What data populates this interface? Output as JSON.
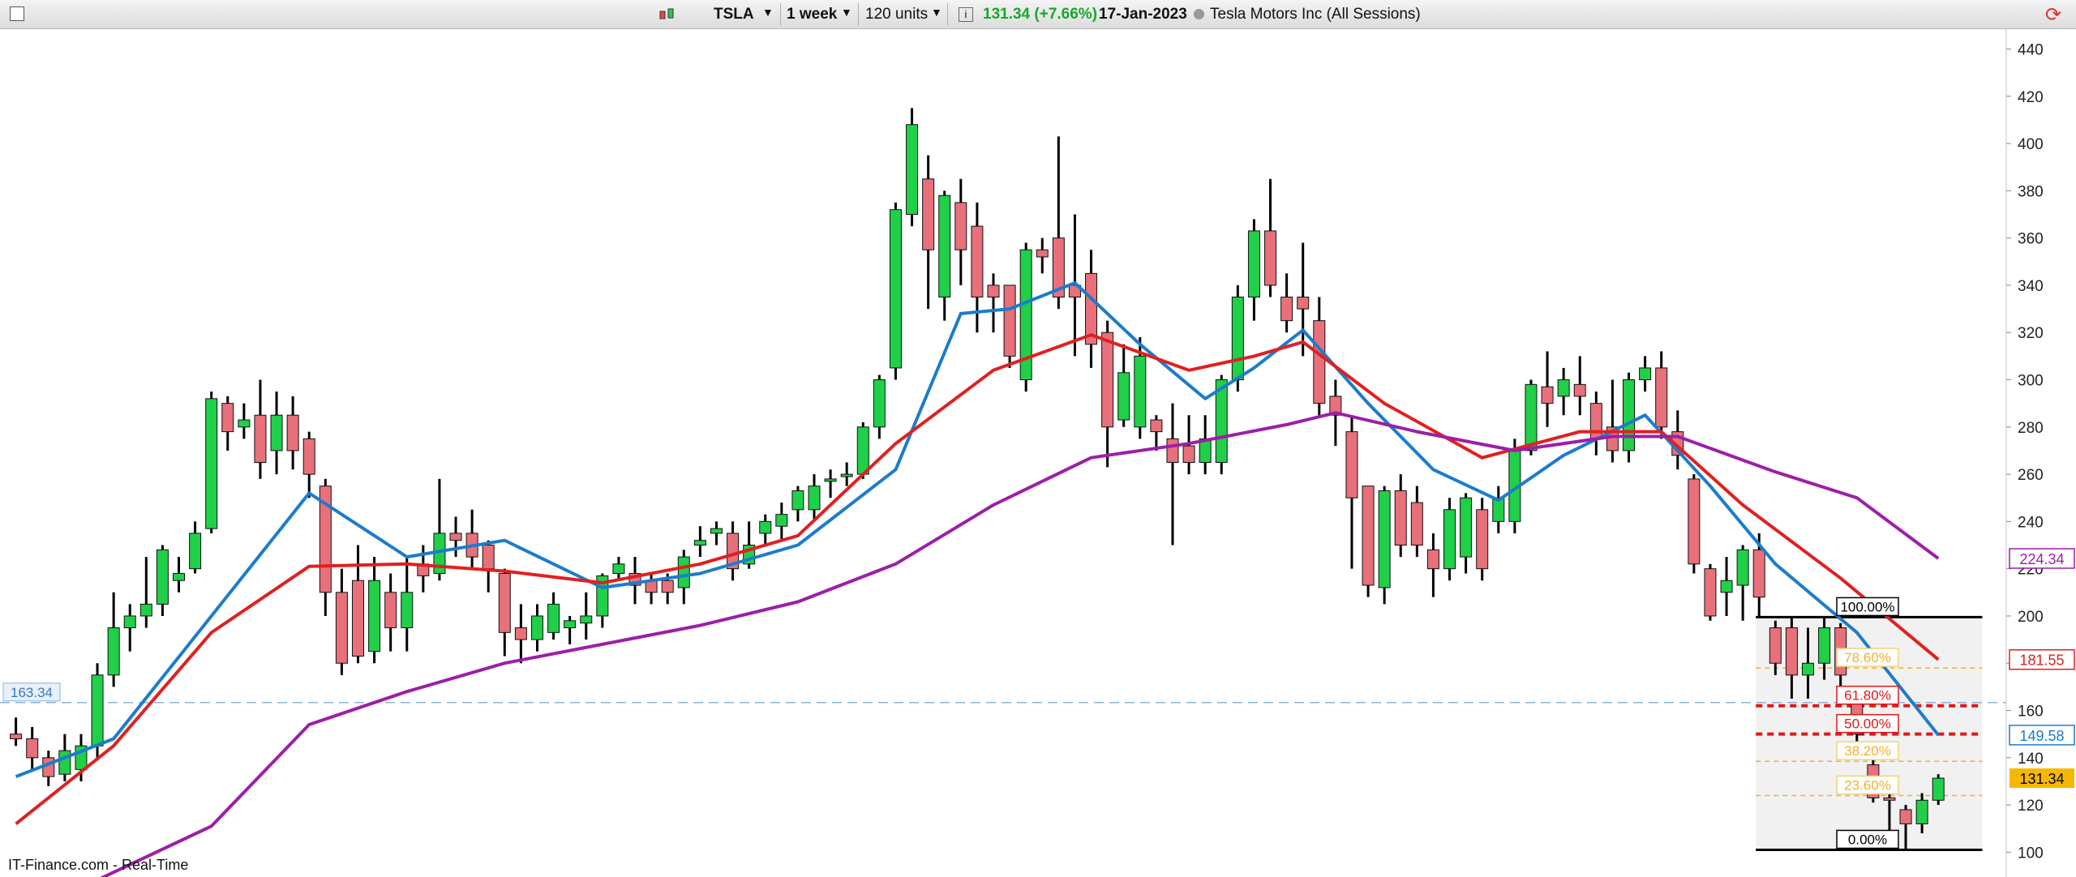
{
  "toolbar": {
    "symbol": "TSLA",
    "interval": "1 week",
    "units": "120 units",
    "quote": "131.34 (+7.66%)",
    "date": "17-Jan-2023",
    "instrument": "Tesla Motors Inc (All Sessions)"
  },
  "footer": "IT-Finance.com - Real-Time",
  "chart_data": {
    "type": "candlestick",
    "open": [
      150,
      148,
      140,
      133,
      135,
      145,
      175,
      195,
      200,
      205,
      215,
      220,
      237,
      290,
      280,
      285,
      270,
      285,
      275,
      255,
      210,
      215,
      185,
      210,
      195,
      222,
      218,
      235,
      235,
      230,
      218,
      195,
      190,
      193,
      195,
      197,
      200,
      218,
      218,
      215,
      215,
      212,
      230,
      235,
      235,
      222,
      235,
      238,
      245,
      245,
      257,
      259,
      260,
      280,
      305,
      370,
      385,
      335,
      375,
      365,
      340,
      340,
      300,
      355,
      360,
      340,
      345,
      320,
      283,
      280,
      283,
      275,
      272,
      265,
      265,
      300,
      335,
      363,
      335,
      335,
      325,
      293,
      278,
      255,
      212,
      253,
      248,
      228,
      220,
      225,
      245,
      240,
      240,
      270,
      297,
      293,
      298,
      290,
      280,
      270,
      300,
      305,
      278,
      258,
      220,
      210,
      213,
      228,
      195,
      195,
      175,
      180,
      195,
      163,
      137,
      123,
      118,
      112,
      122
    ],
    "high": [
      157,
      153,
      143,
      150,
      150,
      180,
      210,
      205,
      225,
      230,
      225,
      240,
      295,
      293,
      290,
      300,
      295,
      293,
      278,
      258,
      220,
      230,
      225,
      218,
      225,
      230,
      258,
      242,
      245,
      232,
      220,
      205,
      205,
      210,
      200,
      210,
      218,
      225,
      225,
      218,
      218,
      228,
      238,
      240,
      240,
      240,
      243,
      248,
      255,
      260,
      262,
      265,
      282,
      302,
      375,
      415,
      395,
      380,
      385,
      375,
      345,
      340,
      358,
      360,
      403,
      370,
      355,
      325,
      315,
      318,
      285,
      290,
      285,
      285,
      302,
      340,
      368,
      385,
      345,
      358,
      335,
      300,
      285,
      255,
      255,
      260,
      255,
      235,
      250,
      252,
      250,
      255,
      275,
      300,
      312,
      305,
      310,
      295,
      300,
      303,
      310,
      312,
      287,
      260,
      222,
      225,
      230,
      235,
      198,
      200,
      195,
      200,
      197,
      165,
      140,
      125,
      120,
      125,
      133
    ],
    "low": [
      145,
      135,
      128,
      130,
      130,
      140,
      170,
      185,
      195,
      200,
      210,
      218,
      235,
      270,
      275,
      258,
      260,
      262,
      250,
      200,
      175,
      180,
      180,
      185,
      185,
      210,
      215,
      225,
      220,
      210,
      183,
      180,
      185,
      190,
      188,
      190,
      195,
      215,
      205,
      205,
      205,
      205,
      225,
      230,
      215,
      220,
      230,
      232,
      240,
      240,
      250,
      255,
      258,
      275,
      300,
      365,
      330,
      325,
      340,
      320,
      320,
      305,
      295,
      345,
      330,
      310,
      305,
      263,
      280,
      275,
      270,
      230,
      260,
      260,
      260,
      295,
      325,
      335,
      320,
      310,
      285,
      272,
      220,
      208,
      205,
      225,
      225,
      208,
      215,
      218,
      215,
      235,
      235,
      268,
      280,
      285,
      285,
      268,
      265,
      265,
      295,
      275,
      262,
      218,
      198,
      200,
      198,
      200,
      175,
      165,
      165,
      173,
      168,
      140,
      121,
      101,
      101,
      108,
      120
    ],
    "close": [
      148,
      140,
      132,
      143,
      145,
      175,
      195,
      200,
      205,
      228,
      218,
      235,
      292,
      278,
      283,
      265,
      285,
      270,
      260,
      210,
      180,
      183,
      215,
      195,
      210,
      217,
      235,
      232,
      225,
      220,
      193,
      190,
      200,
      205,
      198,
      200,
      217,
      222,
      213,
      210,
      210,
      225,
      232,
      237,
      220,
      230,
      240,
      243,
      253,
      255,
      258,
      260,
      280,
      300,
      372,
      408,
      355,
      378,
      355,
      335,
      335,
      310,
      355,
      352,
      335,
      335,
      315,
      280,
      303,
      310,
      278,
      265,
      265,
      275,
      300,
      335,
      363,
      340,
      325,
      330,
      290,
      285,
      250,
      213,
      253,
      230,
      230,
      220,
      245,
      250,
      220,
      250,
      270,
      298,
      290,
      300,
      293,
      275,
      270,
      300,
      305,
      280,
      268,
      222,
      200,
      215,
      228,
      208,
      180,
      175,
      180,
      195,
      175,
      150,
      123,
      122,
      112,
      122,
      131.34
    ],
    "up_color": "#20d048",
    "down_color": "#e8707a",
    "last_price_color": "#f5b800",
    "ylim": [
      89.5,
      448.4
    ],
    "yticks": [
      100,
      120,
      140,
      160,
      180,
      200,
      220,
      240,
      260,
      280,
      300,
      320,
      340,
      360,
      380,
      400,
      420,
      440
    ],
    "series": [
      {
        "color": "#1c7ccc",
        "x": [
          0,
          6,
          12,
          18,
          24,
          30,
          36,
          42,
          48,
          54,
          58,
          61,
          65,
          69,
          73,
          76,
          79,
          83,
          87,
          91,
          95,
          100,
          104,
          108,
          113,
          118
        ],
        "values": [
          132,
          148,
          200,
          252,
          225,
          232,
          212,
          218,
          230,
          262,
          328,
          330,
          341,
          315,
          292,
          305,
          321,
          290,
          262,
          249,
          268,
          285,
          255,
          222,
          193,
          149.58
        ]
      },
      {
        "color": "#e02020",
        "x": [
          0,
          6,
          12,
          18,
          24,
          30,
          36,
          42,
          48,
          54,
          60,
          66,
          72,
          76,
          79,
          84,
          90,
          96,
          101,
          106,
          112,
          118
        ],
        "values": [
          112,
          145,
          193,
          221,
          222,
          219,
          214,
          222,
          234,
          273,
          304,
          319,
          304,
          310,
          316,
          290,
          267,
          278,
          278,
          247,
          216,
          181.55
        ]
      },
      {
        "color": "#9c1fa8",
        "x": [
          4,
          12,
          18,
          24,
          30,
          36,
          42,
          48,
          54,
          60,
          66,
          72,
          78,
          81,
          86,
          92,
          98,
          102,
          108,
          113,
          118
        ],
        "values": [
          85,
          111,
          154,
          168,
          180,
          188,
          196,
          206,
          222,
          247,
          267,
          273,
          281,
          286,
          278,
          270,
          276,
          276,
          261,
          250,
          224.34
        ]
      }
    ],
    "reference_line": {
      "value": 163.34,
      "color": "#8ab4de"
    },
    "fibonacci": {
      "x": [
        106.8,
        120.7
      ],
      "levels": [
        {
          "label": "100.00%",
          "value": 199.5,
          "color": "#000000"
        },
        {
          "label": "78.60%",
          "value": 178,
          "color": "#f2b02c"
        },
        {
          "label": "61.80%",
          "value": 162,
          "color": "#e01818"
        },
        {
          "label": "50.00%",
          "value": 150,
          "color": "#e01818"
        },
        {
          "label": "38.20%",
          "value": 138.5,
          "color": "#f2b02c"
        },
        {
          "label": "23.60%",
          "value": 124,
          "color": "#f2b02c"
        },
        {
          "label": "0.00%",
          "value": 101,
          "color": "#000000"
        }
      ]
    }
  }
}
